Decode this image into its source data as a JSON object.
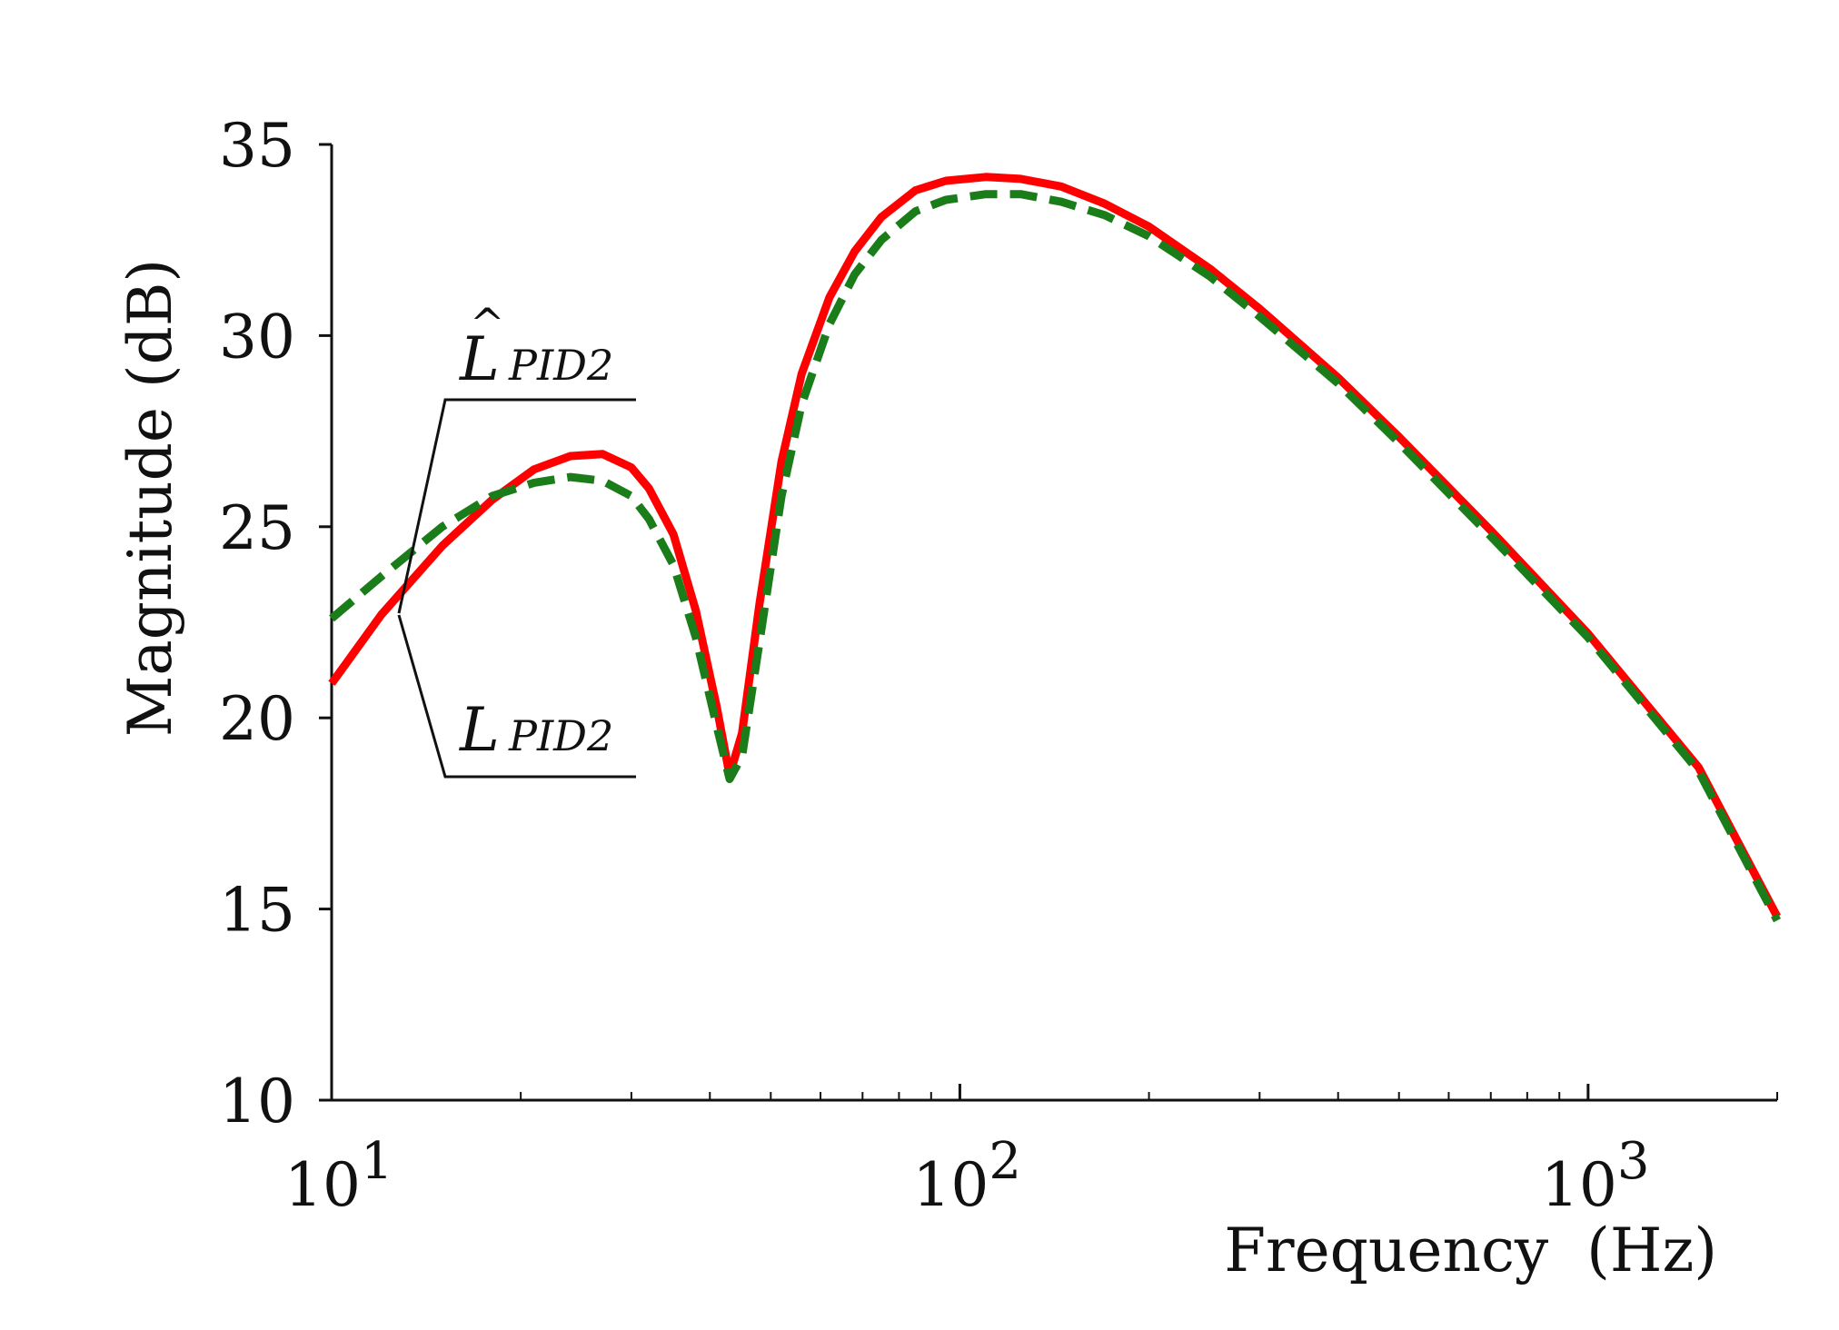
{
  "chart_data": {
    "type": "line",
    "xscale": "log",
    "xlabel": "Frequency  (Hz)",
    "ylabel": "Magnitude (dB)",
    "xlim": [
      10,
      2000
    ],
    "ylim": [
      10,
      35
    ],
    "x_major_ticks": [
      {
        "value": 10,
        "base": "10",
        "exp": "1"
      },
      {
        "value": 100,
        "base": "10",
        "exp": "2"
      },
      {
        "value": 1000,
        "base": "10",
        "exp": "3"
      }
    ],
    "y_ticks": [
      10,
      15,
      20,
      25,
      30,
      35
    ],
    "y_tick_labels": [
      "10",
      "15",
      "20",
      "25",
      "30",
      "35"
    ],
    "grid": false,
    "series": [
      {
        "name": "L_PID2",
        "style": "solid",
        "color": "#ff0000",
        "x": [
          10,
          12,
          15,
          18,
          21,
          24,
          27,
          30,
          32,
          35,
          38,
          41,
          43,
          45,
          48,
          52,
          56,
          62,
          68,
          75,
          85,
          95,
          110,
          125,
          145,
          170,
          200,
          250,
          300,
          400,
          500,
          700,
          1000,
          1500,
          2000
        ],
        "y": [
          20.9,
          22.7,
          24.5,
          25.7,
          26.5,
          26.85,
          26.9,
          26.55,
          26.0,
          24.8,
          22.8,
          20.3,
          18.5,
          19.6,
          23.0,
          26.7,
          29.0,
          31.0,
          32.2,
          33.1,
          33.8,
          34.05,
          34.15,
          34.1,
          33.9,
          33.45,
          32.85,
          31.75,
          30.7,
          28.9,
          27.35,
          24.9,
          22.2,
          18.7,
          14.8
        ]
      },
      {
        "name": "L̂_PID2",
        "style": "dashed",
        "color": "#1a7d1a",
        "x": [
          10,
          12,
          15,
          18,
          21,
          24,
          27,
          30,
          32,
          35,
          38,
          41,
          43,
          45,
          48,
          52,
          56,
          62,
          68,
          75,
          85,
          95,
          110,
          125,
          145,
          170,
          200,
          250,
          300,
          400,
          500,
          700,
          1000,
          1500,
          2000
        ],
        "y": [
          22.6,
          23.7,
          25.0,
          25.8,
          26.15,
          26.3,
          26.2,
          25.8,
          25.2,
          24.0,
          22.1,
          19.8,
          18.4,
          19.0,
          22.0,
          25.8,
          28.2,
          30.3,
          31.6,
          32.5,
          33.25,
          33.55,
          33.7,
          33.7,
          33.5,
          33.15,
          32.6,
          31.55,
          30.5,
          28.75,
          27.2,
          24.75,
          22.1,
          18.6,
          14.7
        ]
      }
    ],
    "annotations": [
      {
        "series": "L̂_PID2",
        "base": "L",
        "sub": "PID2",
        "hat": true
      },
      {
        "series": "L_PID2",
        "base": "L",
        "sub": "PID2",
        "hat": false
      }
    ]
  }
}
